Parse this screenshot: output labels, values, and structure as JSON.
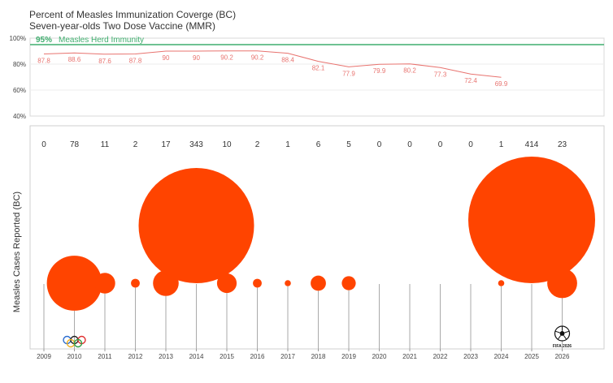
{
  "title": "Percent of Measles Immunization Coverge (BC)",
  "subtitle": "Seven-year-olds Two Dose Vaccine (MMR)",
  "chart_data": [
    {
      "type": "line",
      "title": "Percent of Measles Immunization Coverge (BC)",
      "subtitle": "Seven-year-olds Two Dose Vaccine (MMR)",
      "x": [
        2009,
        2010,
        2011,
        2012,
        2013,
        2014,
        2015,
        2016,
        2017,
        2018,
        2019,
        2020,
        2021,
        2022,
        2023,
        2024
      ],
      "values": [
        87.8,
        88.6,
        87.6,
        87.8,
        90,
        90,
        90.2,
        90.2,
        88.4,
        82.1,
        77.9,
        79.9,
        80.2,
        77.3,
        72.4,
        69.9
      ],
      "value_labels": [
        "87.8",
        "88.6",
        "87.6",
        "87.8",
        "90",
        "90",
        "90.2",
        "90.2",
        "88.4",
        "82.1",
        "77.9",
        "79.9",
        "80.2",
        "77.3",
        "72.4",
        "69.9"
      ],
      "ylim": [
        40,
        100
      ],
      "yticks": [
        "40%",
        "60%",
        "80%",
        "100%"
      ],
      "threshold": {
        "value": 95,
        "label_pct": "95%",
        "label_text": "Measles Herd Immunity",
        "color": "#3fae6e"
      },
      "line_color": "#e8736f"
    },
    {
      "type": "scatter",
      "ylabel": "Measles Cases Reported (BC)",
      "x": [
        2009,
        2010,
        2011,
        2012,
        2013,
        2014,
        2015,
        2016,
        2017,
        2018,
        2019,
        2020,
        2021,
        2022,
        2023,
        2024,
        2025,
        2026
      ],
      "x_labels": [
        "2009",
        "2010",
        "2011",
        "2012",
        "2013",
        "2014",
        "2015",
        "2016",
        "2017",
        "2018",
        "2019",
        "2020",
        "2021",
        "2022",
        "2023",
        "2024",
        "2025",
        "2026"
      ],
      "values": [
        0,
        78,
        11,
        2,
        17,
        343,
        10,
        2,
        1,
        6,
        5,
        0,
        0,
        0,
        0,
        1,
        414,
        23
      ],
      "count_labels": [
        "0",
        "78",
        "11",
        "2",
        "17",
        "343",
        "10",
        "2",
        "1",
        "6",
        "5",
        "0",
        "0",
        "0",
        "0",
        "1",
        "414",
        "23"
      ],
      "bubble_color": "#ff4400",
      "annotations": [
        {
          "year": 2010,
          "label": "olympic-rings-icon"
        },
        {
          "year": 2026,
          "label": "soccer-ball-icon",
          "text": "FIFA 2026"
        }
      ]
    }
  ]
}
